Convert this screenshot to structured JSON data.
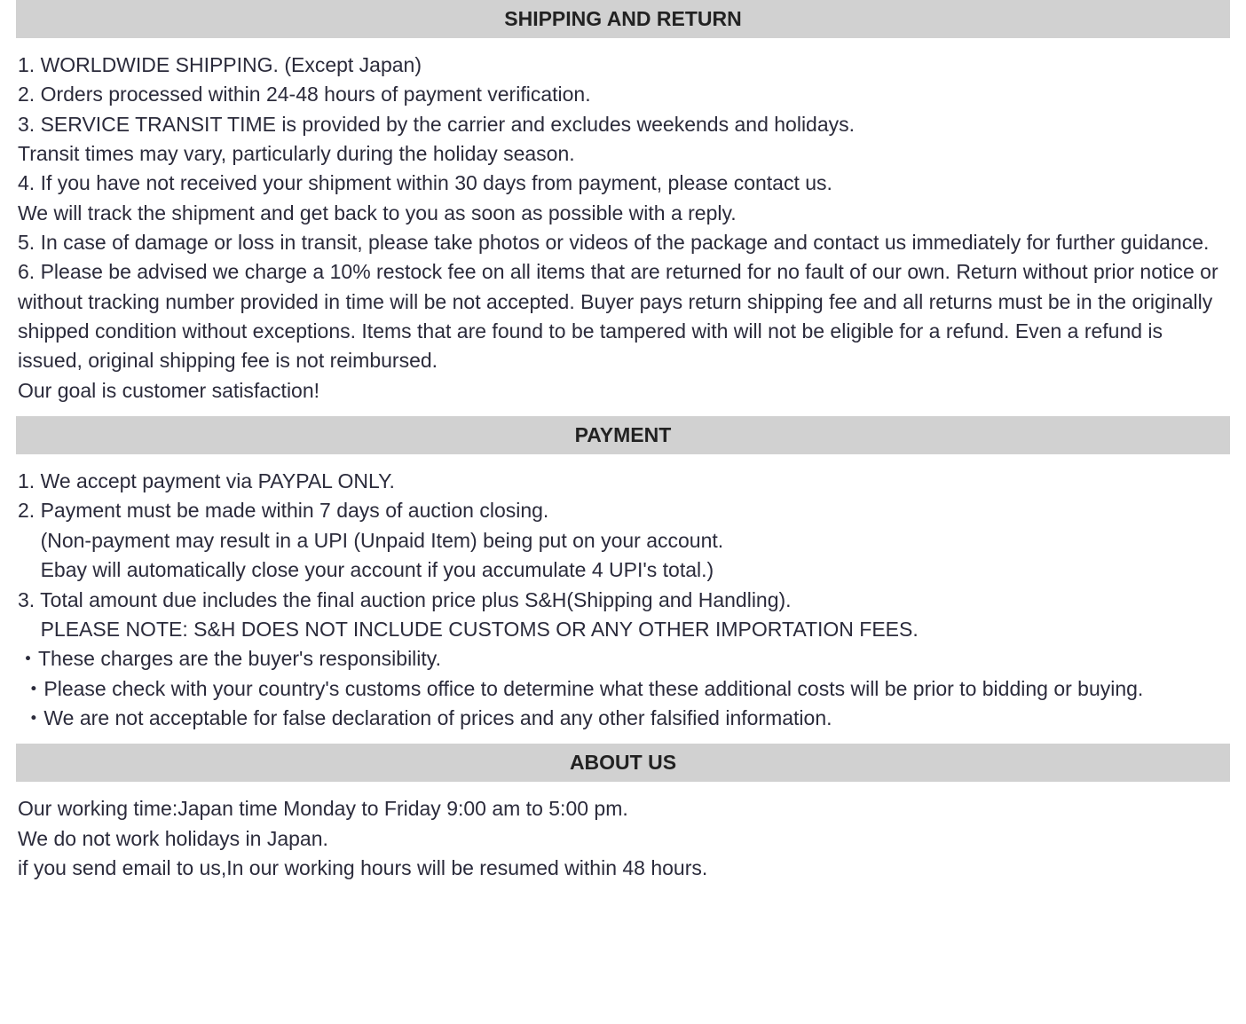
{
  "colors": {
    "header_bg": "#d1d1d1",
    "header_text": "#222222",
    "body_text": "#2b2b3b",
    "page_bg": "#ffffff"
  },
  "typography": {
    "header_fontsize": 23,
    "header_weight": "bold",
    "body_fontsize": 23,
    "line_height": 1.45,
    "font_family": "Verdana, Geneva, sans-serif"
  },
  "sections": {
    "shipping": {
      "title": "SHIPPING AND RETURN",
      "body": "1. WORLDWIDE SHIPPING. (Except Japan)\n2. Orders processed within 24-48 hours of payment verification.\n3. SERVICE TRANSIT TIME is provided by the carrier and excludes weekends and holidays.\nTransit times may vary, particularly during the holiday season.\n4. If you have not received your shipment within 30 days from payment, please contact us.\nWe will track the shipment and get back to you as soon as possible with a reply.\n5. In case of damage or loss in transit, please take photos or videos of the package and contact us immediately for further guidance.\n6. Please be advised we charge a 10% restock fee on all items that are returned for no fault of our own. Return without prior notice or without tracking number provided in time will be not accepted. Buyer pays return shipping fee and all returns must be in the originally shipped condition without exceptions. Items that are found to be tampered with will not be eligible for a refund. Even a refund is issued, original shipping fee is not reimbursed.\nOur goal is customer satisfaction!"
    },
    "payment": {
      "title": "PAYMENT",
      "body": "1. We accept payment via PAYPAL ONLY.\n2. Payment must be made within 7 days of auction closing.\n    (Non-payment may result in a UPI (Unpaid Item) being put on your account.\n    Ebay will automatically close your account if you accumulate 4 UPI's total.)\n3. Total amount due includes the final auction price plus S&H(Shipping and Handling).\n    PLEASE NOTE: S&H DOES NOT INCLUDE CUSTOMS OR ANY OTHER IMPORTATION FEES.\n・These charges are the buyer's responsibility.\n ・Please check with your country's customs office to determine what these additional costs will be prior to bidding or buying.\n ・We are not acceptable for false declaration of prices and any other falsified information."
    },
    "about": {
      "title": "ABOUT US",
      "body": "Our working time:Japan time Monday to Friday 9:00 am to 5:00 pm.\nWe do not work holidays in Japan.\nif you send email to us,In our working hours will be resumed within 48 hours."
    }
  }
}
